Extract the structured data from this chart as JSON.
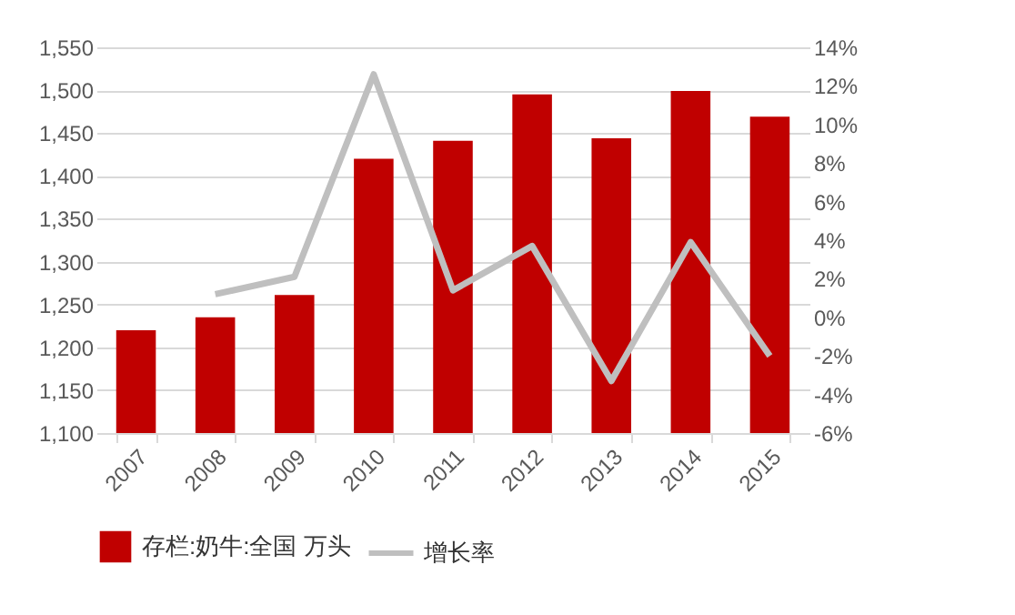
{
  "chart_data": {
    "type": "bar",
    "categories": [
      "2007",
      "2008",
      "2009",
      "2010",
      "2011",
      "2012",
      "2013",
      "2014",
      "2015"
    ],
    "series": [
      {
        "name": "存栏:奶牛:全国 万头",
        "color": "#c00000",
        "values": [
          1220,
          1235,
          1261,
          1420,
          1441,
          1495,
          1444,
          1499,
          1469
        ]
      },
      {
        "name": "增长率",
        "type": "line",
        "axis": "y2",
        "color": "#bfbfbf",
        "values": [
          null,
          1.2,
          2.1,
          12.6,
          1.4,
          3.7,
          -3.3,
          3.9,
          -2.0
        ]
      }
    ],
    "ylim": [
      1100,
      1550
    ],
    "yticks": [
      {
        "value": 1100,
        "label": "1,100"
      },
      {
        "value": 1150,
        "label": "1,150"
      },
      {
        "value": 1200,
        "label": "1,200"
      },
      {
        "value": 1250,
        "label": "1,250"
      },
      {
        "value": 1300,
        "label": "1,300"
      },
      {
        "value": 1350,
        "label": "1,350"
      },
      {
        "value": 1400,
        "label": "1,400"
      },
      {
        "value": 1450,
        "label": "1,450"
      },
      {
        "value": 1500,
        "label": "1,500"
      },
      {
        "value": 1550,
        "label": "1,550"
      }
    ],
    "y2lim": [
      -6,
      14
    ],
    "y2ticks": [
      {
        "value": -6,
        "label": "-6%"
      },
      {
        "value": -4,
        "label": "-4%"
      },
      {
        "value": -2,
        "label": "-2%"
      },
      {
        "value": 0,
        "label": "0%"
      },
      {
        "value": 2,
        "label": "2%"
      },
      {
        "value": 4,
        "label": "4%"
      },
      {
        "value": 6,
        "label": "6%"
      },
      {
        "value": 8,
        "label": "8%"
      },
      {
        "value": 10,
        "label": "10%"
      },
      {
        "value": 12,
        "label": "12%"
      },
      {
        "value": 14,
        "label": "14%"
      }
    ],
    "grid": "y",
    "legend": "bottom",
    "marker": "none",
    "line_style": "solid"
  }
}
